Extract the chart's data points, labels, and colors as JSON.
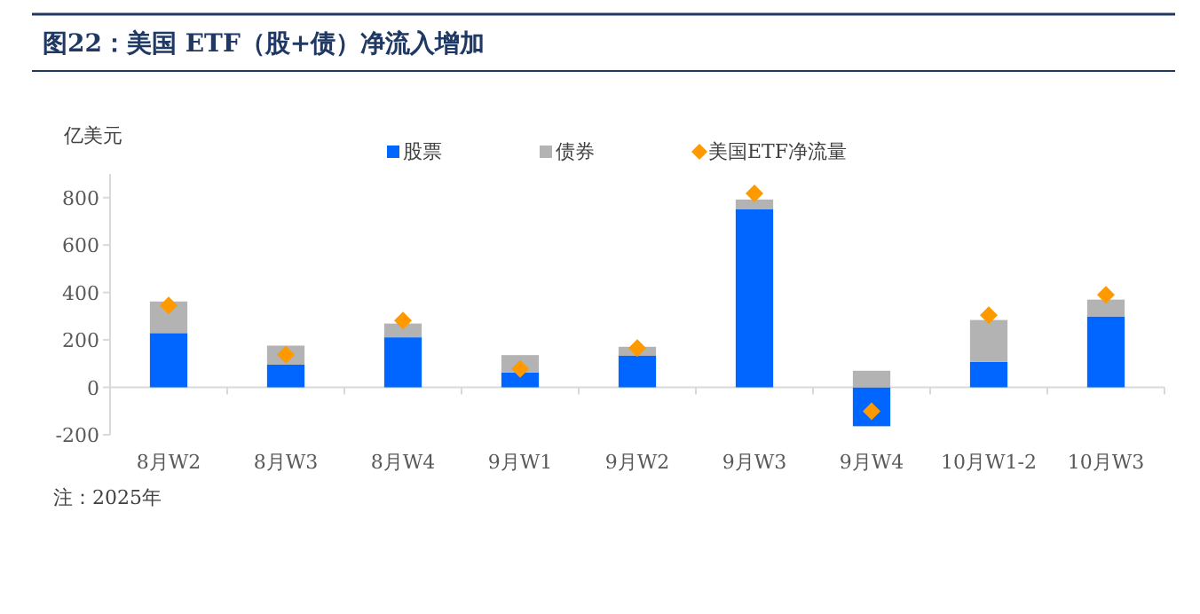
{
  "chart_data": {
    "type": "bar",
    "title": "图22：美国 ETF（股+债）净流入增加",
    "ylabel": "亿美元",
    "stacked": true,
    "legend": "top",
    "categories": [
      "8月W2",
      "8月W3",
      "8月W4",
      "9月W1",
      "9月W2",
      "9月W3",
      "9月W4",
      "10月W1-2",
      "10月W3"
    ],
    "series": [
      {
        "name": "股票",
        "color": "#0066ff",
        "values": [
          229,
          96,
          211,
          63,
          133,
          752,
          -164,
          108,
          299
        ]
      },
      {
        "name": "债券",
        "color": "#b3b3b3",
        "values": [
          133,
          80,
          58,
          73,
          38,
          40,
          70,
          176,
          71
        ]
      },
      {
        "name": "美国ETF净流量",
        "type": "scatter",
        "marker": "diamond",
        "color": "#ff9900",
        "values": [
          345,
          138,
          282,
          78,
          166,
          818,
          -101,
          304,
          390
        ]
      }
    ],
    "ylim": [
      -200,
      900
    ],
    "yticks": [
      -200,
      0,
      200,
      400,
      600,
      800
    ],
    "annotations": [
      "注：2025年"
    ]
  }
}
